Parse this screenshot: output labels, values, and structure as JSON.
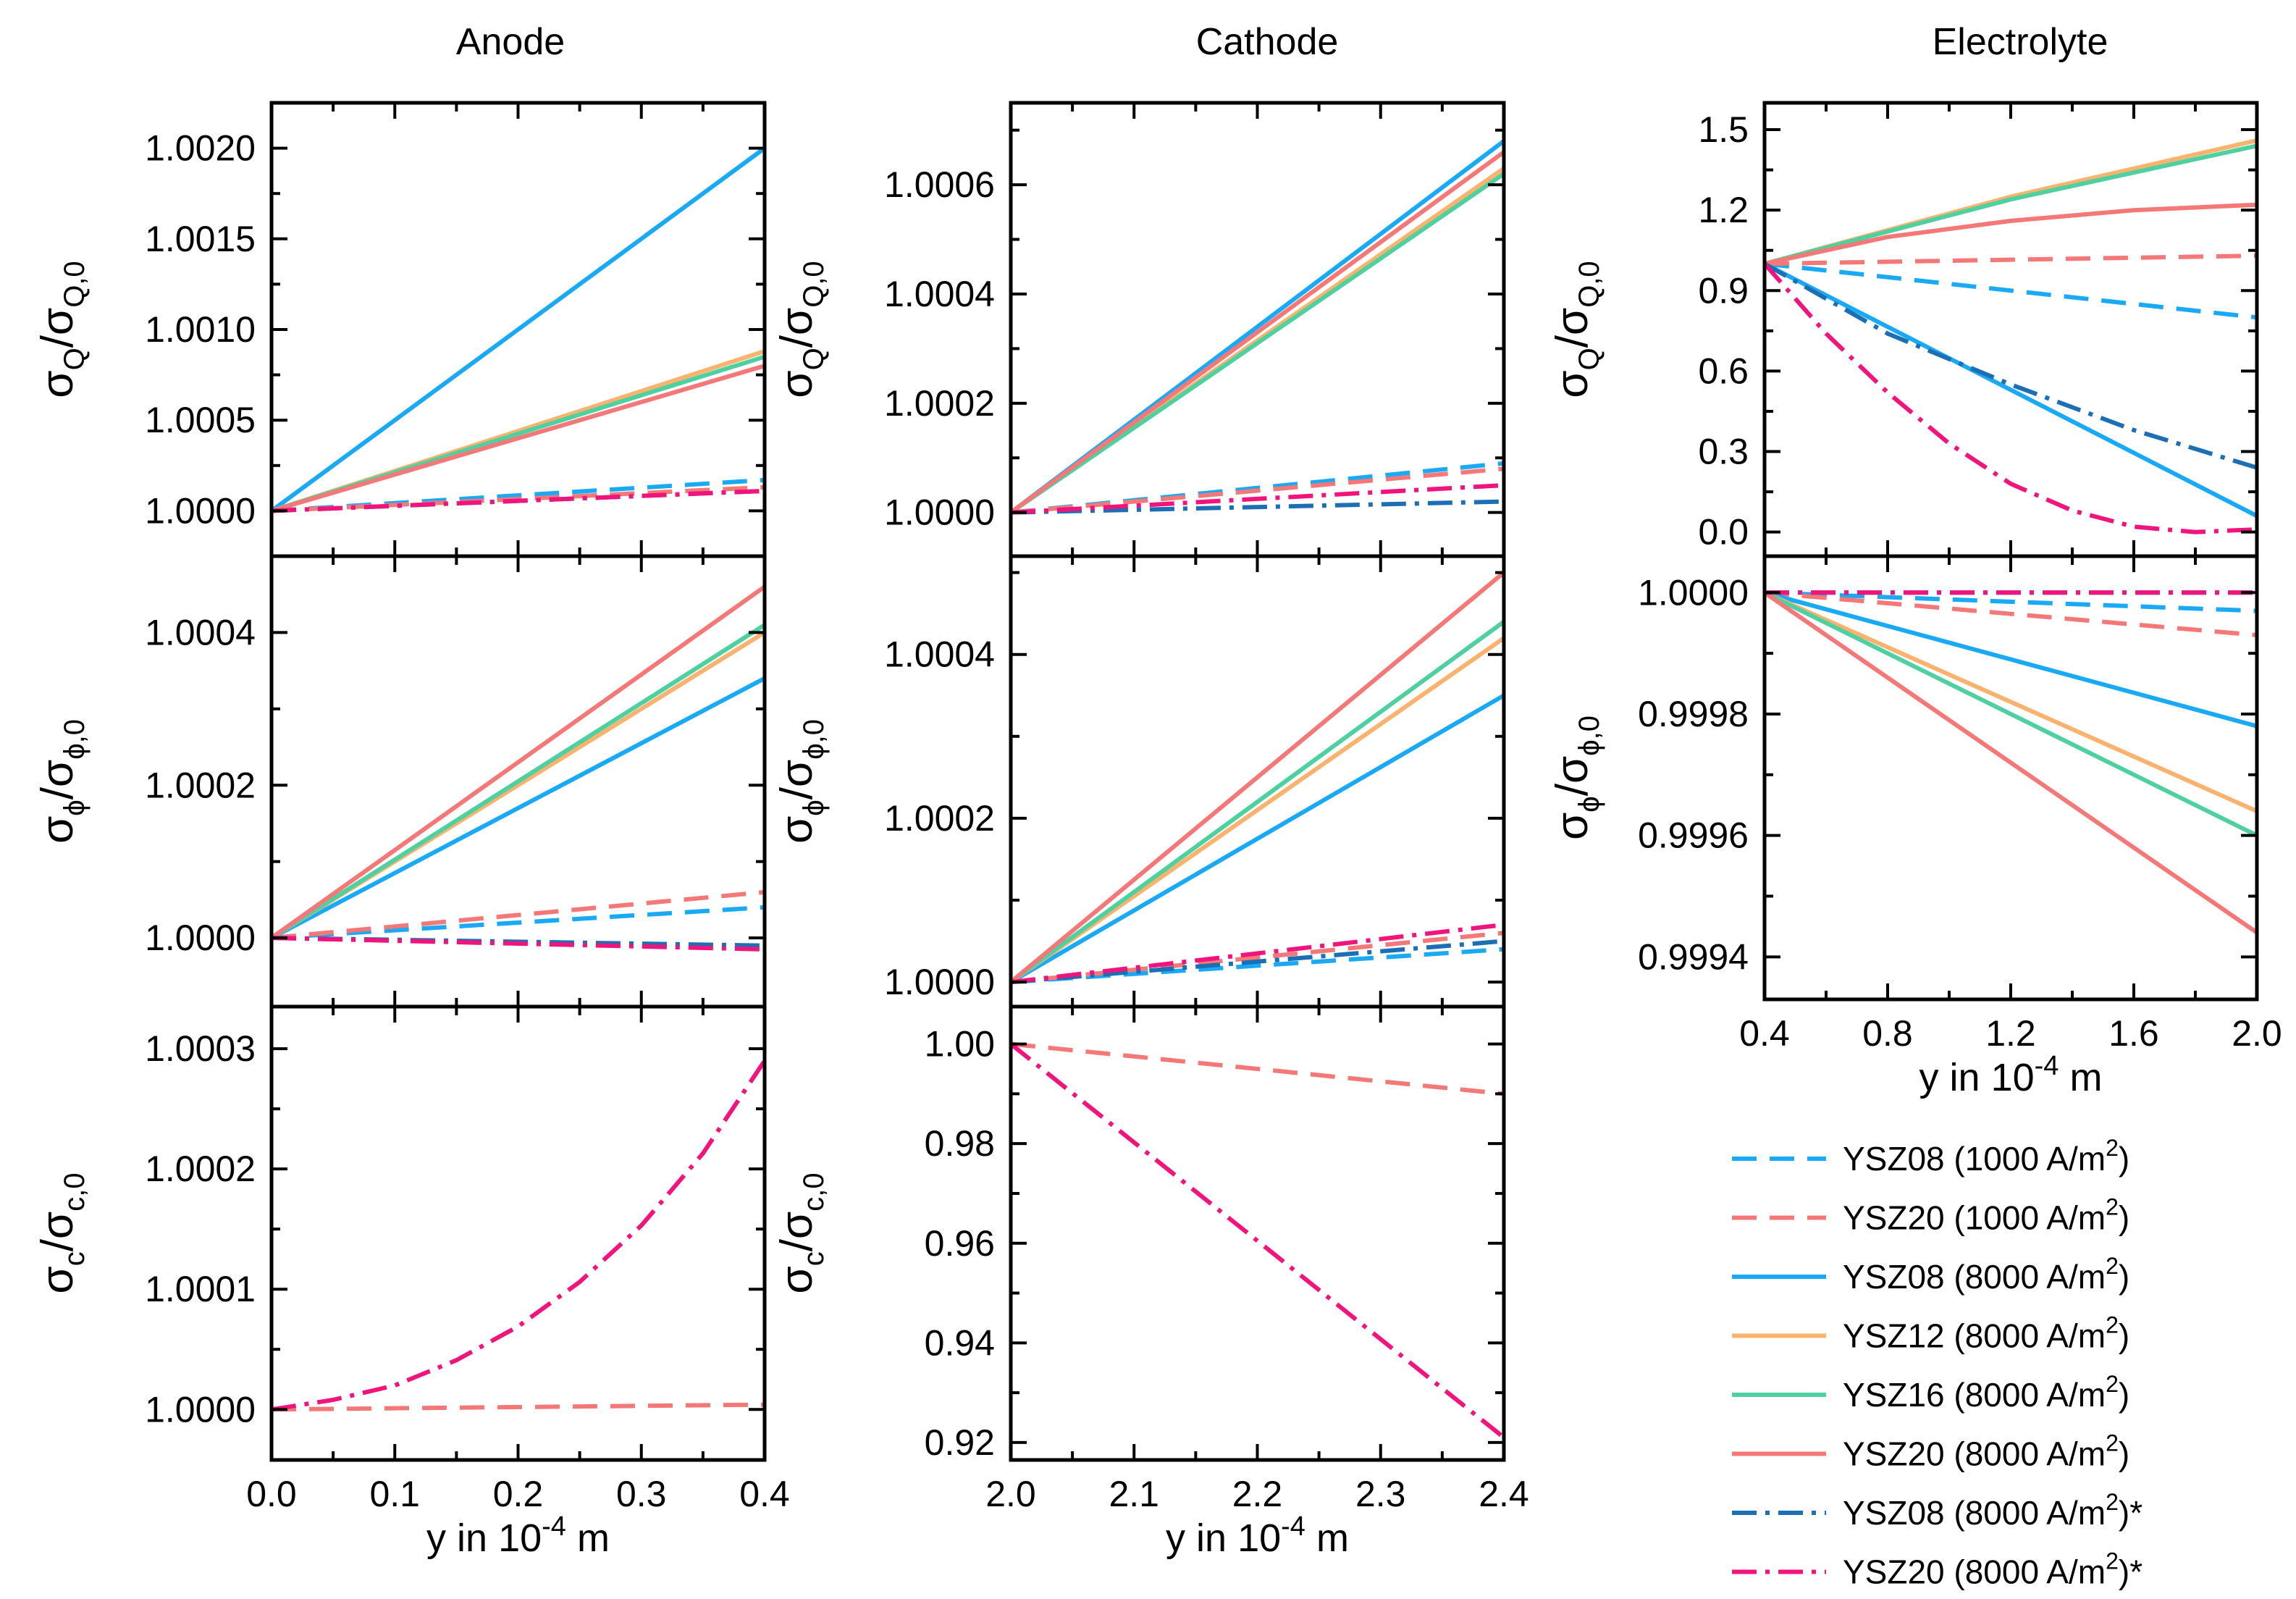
{
  "colors": {
    "YSZ08": "#1aaaf5",
    "YSZ12": "#f9b36e",
    "YSZ16": "#4fd0a0",
    "YSZ20": "#f57878",
    "YSZ08dd": "#1d6fb5",
    "YSZ20dd": "#f0147c"
  },
  "legend": [
    {
      "key": "ysz08_1000",
      "label": "YSZ08 (1000 A/m",
      "sup": "2",
      "suffix": ")",
      "color": "#1aaaf5",
      "dash": "dash"
    },
    {
      "key": "ysz20_1000",
      "label": "YSZ20 (1000 A/m",
      "sup": "2",
      "suffix": ")",
      "color": "#f57878",
      "dash": "dash"
    },
    {
      "key": "ysz08_8000",
      "label": "YSZ08 (8000 A/m",
      "sup": "2",
      "suffix": ")",
      "color": "#1aaaf5",
      "dash": "solid"
    },
    {
      "key": "ysz12_8000",
      "label": "YSZ12 (8000 A/m",
      "sup": "2",
      "suffix": ")",
      "color": "#f9b36e",
      "dash": "solid"
    },
    {
      "key": "ysz16_8000",
      "label": "YSZ16 (8000 A/m",
      "sup": "2",
      "suffix": ")",
      "color": "#4fd0a0",
      "dash": "solid"
    },
    {
      "key": "ysz20_8000",
      "label": "YSZ20 (8000 A/m",
      "sup": "2",
      "suffix": ")",
      "color": "#f57878",
      "dash": "solid"
    },
    {
      "key": "ysz08_8000s",
      "label": "YSZ08 (8000 A/m",
      "sup": "2",
      "suffix": ")*",
      "color": "#1d6fb5",
      "dash": "dashdot"
    },
    {
      "key": "ysz20_8000s",
      "label": "YSZ20 (8000 A/m",
      "sup": "2",
      "suffix": ")*",
      "color": "#f0147c",
      "dash": "dashdot"
    }
  ],
  "chart_data": [
    {
      "id": "anode_Q",
      "type": "line",
      "title": "Anode",
      "column": "anode",
      "row": 0,
      "xlim": [
        0.0,
        0.4
      ],
      "ylim": [
        0.99975,
        1.00225
      ],
      "yticks": [
        1.0,
        1.0005,
        1.001,
        1.0015,
        1.002
      ],
      "yticklabels": [
        "1.0000",
        "1.0005",
        "1.0010",
        "1.0015",
        "1.0020"
      ],
      "ylabel": {
        "main": "σ",
        "sub": "Q",
        "sep": "/σ",
        "sub2": "Q,0"
      },
      "series": [
        {
          "key": "ysz08_1000",
          "x": [
            0.0,
            0.4
          ],
          "y": [
            1.0,
            1.00017
          ]
        },
        {
          "key": "ysz20_1000",
          "x": [
            0.0,
            0.4
          ],
          "y": [
            1.0,
            1.00013
          ]
        },
        {
          "key": "ysz08_8000",
          "x": [
            0.0,
            0.4
          ],
          "y": [
            1.0,
            1.002
          ]
        },
        {
          "key": "ysz12_8000",
          "x": [
            0.0,
            0.4
          ],
          "y": [
            1.0,
            1.00088
          ]
        },
        {
          "key": "ysz16_8000",
          "x": [
            0.0,
            0.4
          ],
          "y": [
            1.0,
            1.00085
          ]
        },
        {
          "key": "ysz20_8000",
          "x": [
            0.0,
            0.4
          ],
          "y": [
            1.0,
            1.0008
          ]
        },
        {
          "key": "ysz08_8000s",
          "x": [
            0.0,
            0.4
          ],
          "y": [
            1.0,
            1.00011
          ]
        },
        {
          "key": "ysz20_8000s",
          "x": [
            0.0,
            0.4
          ],
          "y": [
            1.0,
            1.00011
          ]
        }
      ]
    },
    {
      "id": "anode_phi",
      "type": "line",
      "column": "anode",
      "row": 1,
      "xlim": [
        0.0,
        0.4
      ],
      "ylim": [
        0.99991,
        1.0005
      ],
      "yticks": [
        1.0,
        1.0002,
        1.0004
      ],
      "yticklabels": [
        "1.0000",
        "1.0002",
        "1.0004"
      ],
      "ylabel": {
        "main": "σ",
        "sub": "ϕ",
        "sep": "/σ",
        "sub2": "ϕ,0"
      },
      "series": [
        {
          "key": "ysz08_1000",
          "x": [
            0.0,
            0.4
          ],
          "y": [
            1.0,
            1.00004
          ]
        },
        {
          "key": "ysz20_1000",
          "x": [
            0.0,
            0.4
          ],
          "y": [
            1.0,
            1.00006
          ]
        },
        {
          "key": "ysz08_8000",
          "x": [
            0.0,
            0.4
          ],
          "y": [
            1.0,
            1.00034
          ]
        },
        {
          "key": "ysz12_8000",
          "x": [
            0.0,
            0.4
          ],
          "y": [
            1.0,
            1.0004
          ]
        },
        {
          "key": "ysz16_8000",
          "x": [
            0.0,
            0.4
          ],
          "y": [
            1.0,
            1.00041
          ]
        },
        {
          "key": "ysz20_8000",
          "x": [
            0.0,
            0.4
          ],
          "y": [
            1.0,
            1.00046
          ]
        },
        {
          "key": "ysz08_8000s",
          "x": [
            0.0,
            0.4
          ],
          "y": [
            1.0,
            0.99999
          ]
        },
        {
          "key": "ysz20_8000s",
          "x": [
            0.0,
            0.4
          ],
          "y": [
            1.0,
            0.999985
          ]
        }
      ]
    },
    {
      "id": "anode_c",
      "type": "line",
      "column": "anode",
      "row": 2,
      "xlim": [
        0.0,
        0.4
      ],
      "ylim": [
        0.999958,
        1.000335
      ],
      "xticks": [
        0.0,
        0.1,
        0.2,
        0.3,
        0.4
      ],
      "xticklabels": [
        "0.0",
        "0.1",
        "0.2",
        "0.3",
        "0.4"
      ],
      "yticks": [
        1.0,
        1.0001,
        1.0002,
        1.0003
      ],
      "yticklabels": [
        "1.0000",
        "1.0001",
        "1.0002",
        "1.0003"
      ],
      "ylabel": {
        "main": "σ",
        "sub": "c",
        "sep": "/σ",
        "sub2": "c,0"
      },
      "xlabel": {
        "text": "y in 10",
        "sup": "-4",
        "suffix": " m"
      },
      "series": [
        {
          "key": "ysz20_1000",
          "x": [
            0.0,
            0.4
          ],
          "y": [
            1.0,
            1.000004
          ]
        },
        {
          "key": "ysz20_8000s",
          "x": [
            0.0,
            0.05,
            0.1,
            0.15,
            0.2,
            0.25,
            0.3,
            0.35,
            0.4
          ],
          "y": [
            1.0,
            1.000008,
            1.00002,
            1.000041,
            1.000069,
            1.000106,
            1.000153,
            1.000213,
            1.00029
          ]
        }
      ]
    },
    {
      "id": "cathode_Q",
      "type": "line",
      "title": "Cathode",
      "column": "cathode",
      "row": 0,
      "xlim": [
        2.0,
        2.4
      ],
      "ylim": [
        0.99992,
        1.00075
      ],
      "yticks": [
        1.0,
        1.0002,
        1.0004,
        1.0006
      ],
      "yticklabels": [
        "1.0000",
        "1.0002",
        "1.0004",
        "1.0006"
      ],
      "ylabel": {
        "main": "σ",
        "sub": "Q",
        "sep": "/σ",
        "sub2": "Q,0"
      },
      "series": [
        {
          "key": "ysz08_1000",
          "x": [
            2.0,
            2.4
          ],
          "y": [
            1.0,
            1.00009
          ]
        },
        {
          "key": "ysz20_1000",
          "x": [
            2.0,
            2.4
          ],
          "y": [
            1.0,
            1.00008
          ]
        },
        {
          "key": "ysz08_8000",
          "x": [
            2.0,
            2.4
          ],
          "y": [
            1.0,
            1.00068
          ]
        },
        {
          "key": "ysz12_8000",
          "x": [
            2.0,
            2.4
          ],
          "y": [
            1.0,
            1.00063
          ]
        },
        {
          "key": "ysz16_8000",
          "x": [
            2.0,
            2.4
          ],
          "y": [
            1.0,
            1.00062
          ]
        },
        {
          "key": "ysz20_8000",
          "x": [
            2.0,
            2.4
          ],
          "y": [
            1.0,
            1.00066
          ]
        },
        {
          "key": "ysz08_8000s",
          "x": [
            2.0,
            2.4
          ],
          "y": [
            1.0,
            1.00002
          ]
        },
        {
          "key": "ysz20_8000s",
          "x": [
            2.0,
            2.4
          ],
          "y": [
            1.0,
            1.00005
          ]
        }
      ]
    },
    {
      "id": "cathode_phi",
      "type": "line",
      "column": "cathode",
      "row": 1,
      "xlim": [
        2.0,
        2.4
      ],
      "ylim": [
        0.99997,
        1.00052
      ],
      "yticks": [
        1.0,
        1.0002,
        1.0004
      ],
      "yticklabels": [
        "1.0000",
        "1.0002",
        "1.0004"
      ],
      "ylabel": {
        "main": "σ",
        "sub": "ϕ",
        "sep": "/σ",
        "sub2": "ϕ,0"
      },
      "series": [
        {
          "key": "ysz08_1000",
          "x": [
            2.0,
            2.4
          ],
          "y": [
            1.0,
            1.00004
          ]
        },
        {
          "key": "ysz20_1000",
          "x": [
            2.0,
            2.4
          ],
          "y": [
            1.0,
            1.00006
          ]
        },
        {
          "key": "ysz08_8000",
          "x": [
            2.0,
            2.4
          ],
          "y": [
            1.0,
            1.00035
          ]
        },
        {
          "key": "ysz12_8000",
          "x": [
            2.0,
            2.4
          ],
          "y": [
            1.0,
            1.00042
          ]
        },
        {
          "key": "ysz16_8000",
          "x": [
            2.0,
            2.4
          ],
          "y": [
            1.0,
            1.00044
          ]
        },
        {
          "key": "ysz20_8000",
          "x": [
            2.0,
            2.4
          ],
          "y": [
            1.0,
            1.0005
          ]
        },
        {
          "key": "ysz08_8000s",
          "x": [
            2.0,
            2.4
          ],
          "y": [
            1.0,
            1.00005
          ]
        },
        {
          "key": "ysz20_8000s",
          "x": [
            2.0,
            2.4
          ],
          "y": [
            1.0,
            1.00007
          ]
        }
      ]
    },
    {
      "id": "cathode_c",
      "type": "line",
      "column": "cathode",
      "row": 2,
      "xlim": [
        2.0,
        2.4
      ],
      "ylim": [
        0.9165,
        1.0075
      ],
      "xticks": [
        2.0,
        2.1,
        2.2,
        2.3,
        2.4
      ],
      "xticklabels": [
        "2.0",
        "2.1",
        "2.2",
        "2.3",
        "2.4"
      ],
      "yticks": [
        0.92,
        0.94,
        0.96,
        0.98,
        1.0
      ],
      "yticklabels": [
        "0.92",
        "0.94",
        "0.96",
        "0.98",
        "1.00"
      ],
      "ylabel": {
        "main": "σ",
        "sub": "c",
        "sep": "/σ",
        "sub2": "c,0"
      },
      "xlabel": {
        "text": "y in 10",
        "sup": "-4",
        "suffix": " m"
      },
      "series": [
        {
          "key": "ysz20_1000",
          "x": [
            2.0,
            2.4
          ],
          "y": [
            1.0,
            0.99
          ]
        },
        {
          "key": "ysz20_8000s",
          "x": [
            2.0,
            2.4
          ],
          "y": [
            1.0,
            0.921
          ]
        }
      ]
    },
    {
      "id": "electrolyte_Q",
      "type": "line",
      "title": "Electrolyte",
      "column": "electrolyte",
      "row": 0,
      "xlim": [
        0.4,
        2.0
      ],
      "ylim": [
        -0.09,
        1.6
      ],
      "yticks": [
        0.0,
        0.3,
        0.6,
        0.9,
        1.2,
        1.5
      ],
      "yticklabels": [
        "0.0",
        "0.3",
        "0.6",
        "0.9",
        "1.2",
        "1.5"
      ],
      "ylabel": {
        "main": "σ",
        "sub": "Q",
        "sep": "/σ",
        "sub2": "Q,0"
      },
      "series": [
        {
          "key": "ysz08_1000",
          "x": [
            0.4,
            2.0
          ],
          "y": [
            1.0,
            0.8
          ]
        },
        {
          "key": "ysz20_1000",
          "x": [
            0.4,
            2.0
          ],
          "y": [
            1.0,
            1.03
          ]
        },
        {
          "key": "ysz08_8000",
          "x": [
            0.4,
            2.0
          ],
          "y": [
            1.0,
            0.06
          ]
        },
        {
          "key": "ysz12_8000",
          "x": [
            0.4,
            1.2,
            2.0
          ],
          "y": [
            1.0,
            1.25,
            1.46
          ]
        },
        {
          "key": "ysz16_8000",
          "x": [
            0.4,
            1.2,
            2.0
          ],
          "y": [
            1.0,
            1.24,
            1.44
          ]
        },
        {
          "key": "ysz20_8000",
          "x": [
            0.4,
            0.8,
            1.2,
            1.6,
            2.0
          ],
          "y": [
            1.0,
            1.1,
            1.16,
            1.2,
            1.22
          ]
        },
        {
          "key": "ysz08_8000s",
          "x": [
            0.4,
            0.8,
            1.2,
            1.6,
            2.0
          ],
          "y": [
            1.0,
            0.74,
            0.55,
            0.38,
            0.24
          ]
        },
        {
          "key": "ysz20_8000s",
          "x": [
            0.4,
            0.6,
            0.8,
            1.0,
            1.2,
            1.4,
            1.6,
            1.8,
            2.0
          ],
          "y": [
            1.0,
            0.74,
            0.52,
            0.33,
            0.18,
            0.08,
            0.02,
            0.0,
            0.01
          ]
        }
      ]
    },
    {
      "id": "electrolyte_phi",
      "type": "line",
      "column": "electrolyte",
      "row": 1,
      "xlim": [
        0.4,
        2.0
      ],
      "ylim": [
        0.99933,
        1.00006
      ],
      "xticks": [
        0.4,
        0.8,
        1.2,
        1.6,
        2.0
      ],
      "xticklabels": [
        "0.4",
        "0.8",
        "1.2",
        "1.6",
        "2.0"
      ],
      "yticks": [
        0.9994,
        0.9996,
        0.9998,
        1.0
      ],
      "yticklabels": [
        "0.9994",
        "0.9996",
        "0.9998",
        "1.0000"
      ],
      "ylabel": {
        "main": "σ",
        "sub": "ϕ",
        "sep": "/σ",
        "sub2": "ϕ,0"
      },
      "xlabel": {
        "text": "y in 10",
        "sup": "-4",
        "suffix": " m"
      },
      "series": [
        {
          "key": "ysz08_1000",
          "x": [
            0.4,
            2.0
          ],
          "y": [
            1.0,
            0.99997
          ]
        },
        {
          "key": "ysz20_1000",
          "x": [
            0.4,
            2.0
          ],
          "y": [
            1.0,
            0.99993
          ]
        },
        {
          "key": "ysz08_8000",
          "x": [
            0.4,
            2.0
          ],
          "y": [
            1.0,
            0.99978
          ]
        },
        {
          "key": "ysz12_8000",
          "x": [
            0.4,
            2.0
          ],
          "y": [
            1.0,
            0.99964
          ]
        },
        {
          "key": "ysz16_8000",
          "x": [
            0.4,
            2.0
          ],
          "y": [
            1.0,
            0.9996
          ]
        },
        {
          "key": "ysz20_8000",
          "x": [
            0.4,
            2.0
          ],
          "y": [
            1.0,
            0.99944
          ]
        },
        {
          "key": "ysz08_8000s",
          "x": [
            0.4,
            2.0
          ],
          "y": [
            1.0,
            1.0
          ]
        },
        {
          "key": "ysz20_8000s",
          "x": [
            0.4,
            2.0
          ],
          "y": [
            1.0,
            1.0
          ]
        }
      ]
    }
  ]
}
